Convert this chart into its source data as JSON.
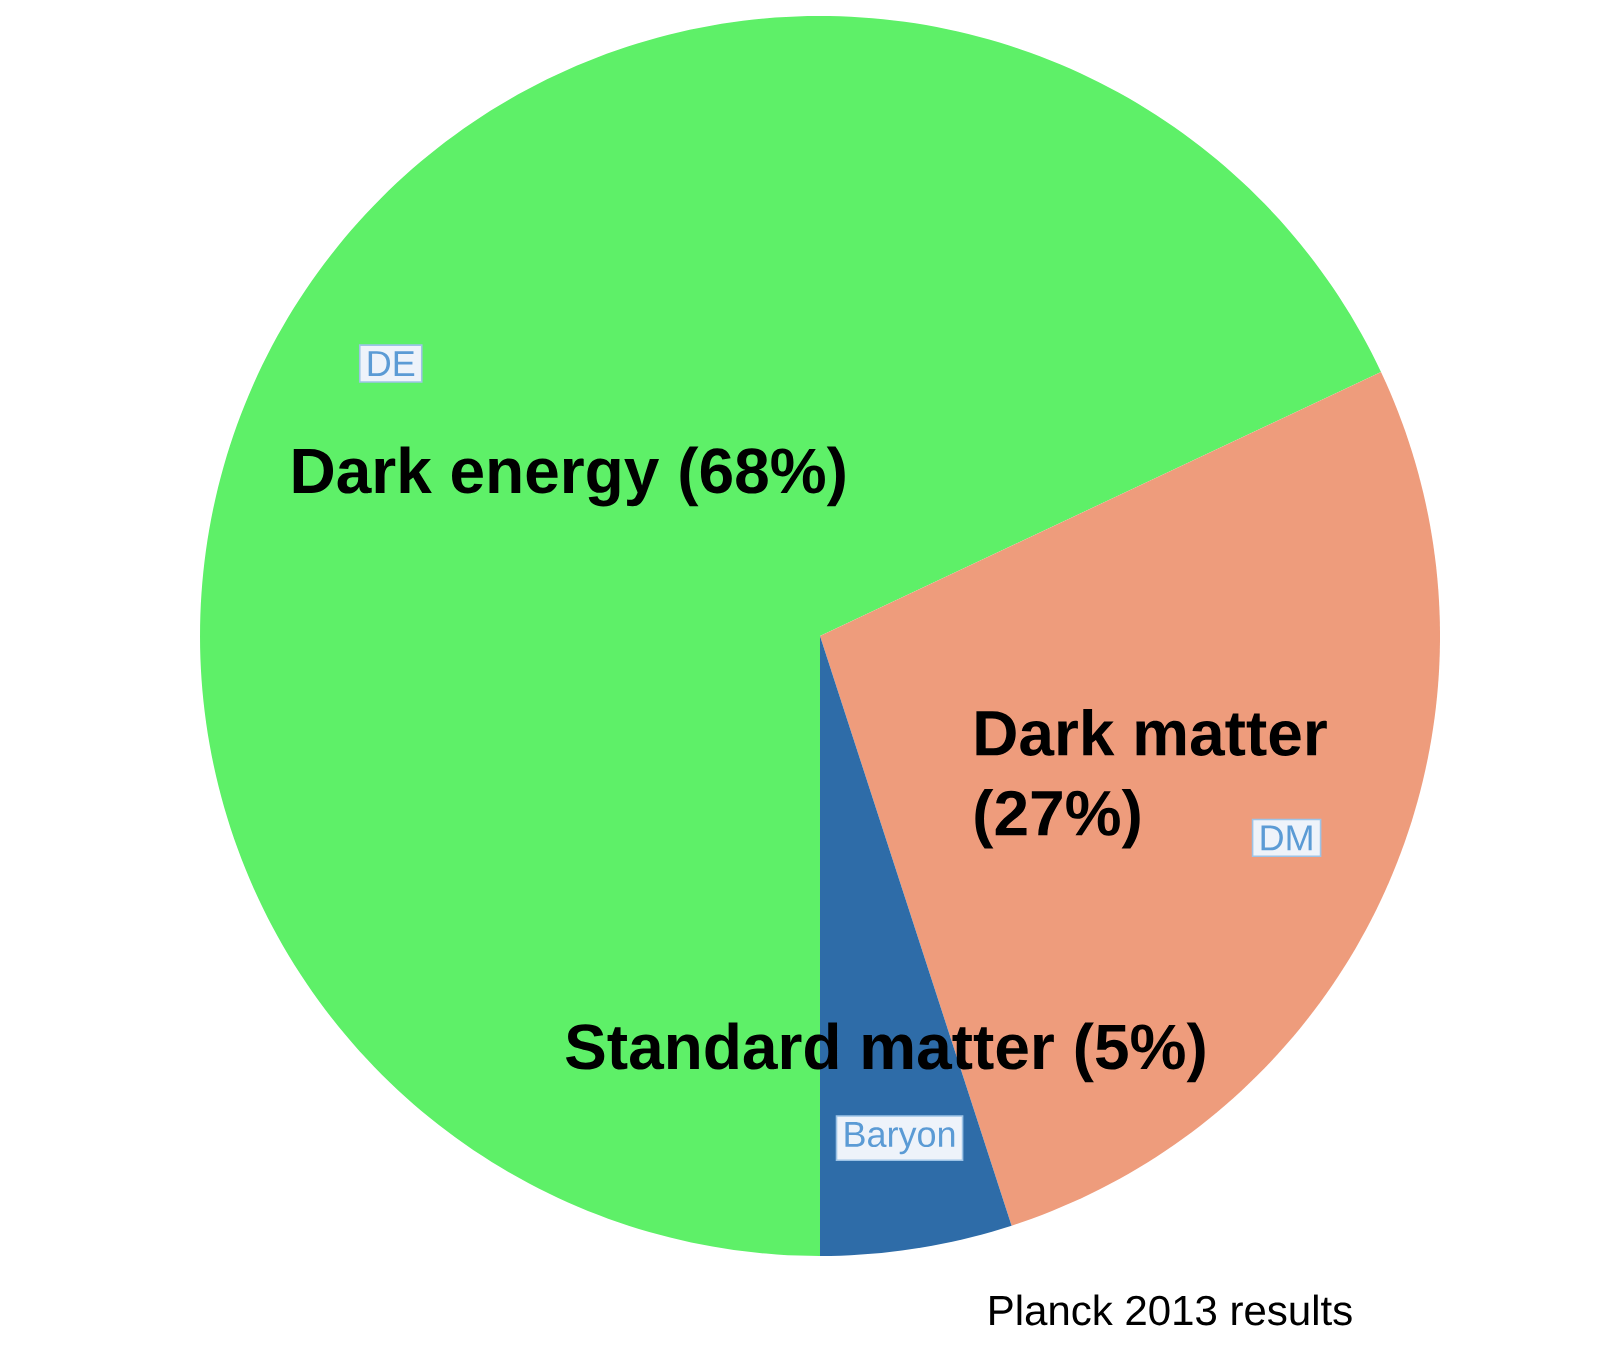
{
  "chart_data": {
    "type": "pie",
    "categories": [
      "Dark energy",
      "Dark matter",
      "Standard matter"
    ],
    "values": [
      68,
      27,
      5
    ],
    "colors": [
      "#5ef068",
      "#ee9c7c",
      "#2e6ca8"
    ],
    "value_labels": [
      "(68%)",
      "(27%)",
      "(5%)"
    ],
    "annotations": [
      "DE",
      "DM",
      "Baryon",
      "Planck 2013 results"
    ]
  }
}
